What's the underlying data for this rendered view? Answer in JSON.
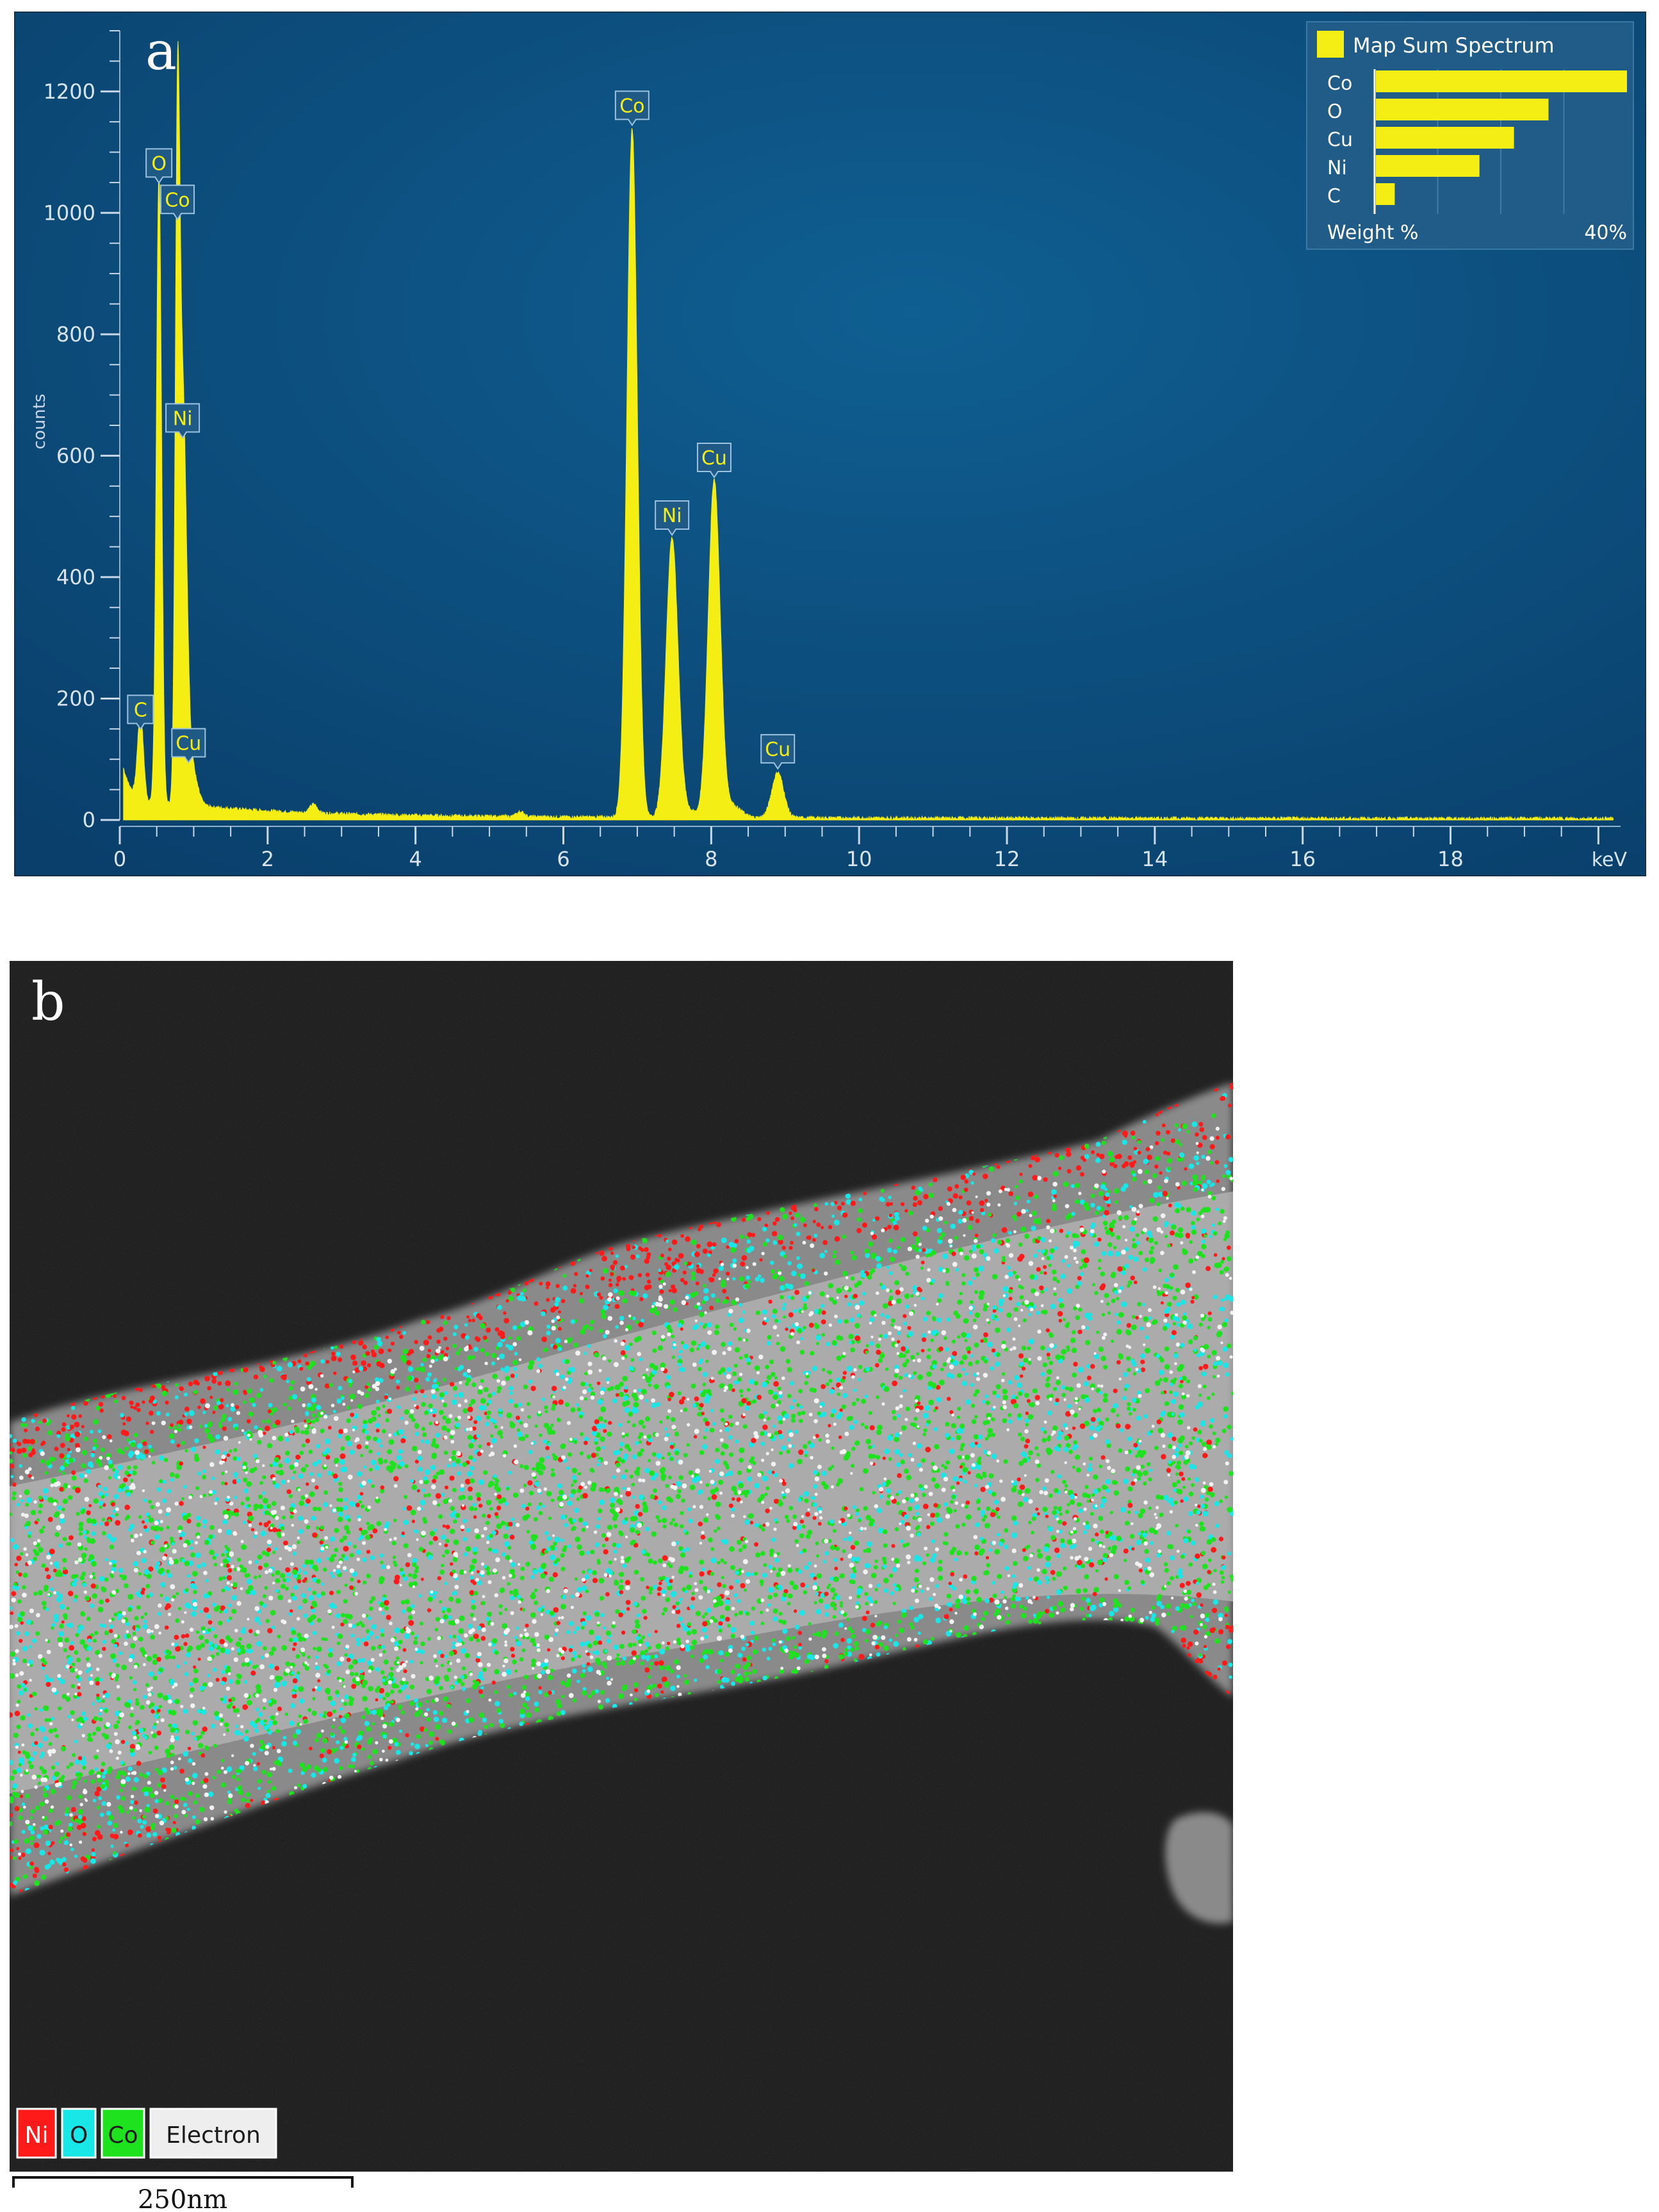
{
  "panels": [
    {
      "label": "a"
    },
    {
      "label": "b"
    }
  ],
  "chart_data": {
    "type": "area",
    "ylabel": "counts",
    "xunit": "keV",
    "xlim": [
      0,
      20.3
    ],
    "ylim": [
      0,
      1300
    ],
    "x_ticks": [
      "0",
      "2",
      "4",
      "6",
      "8",
      "10",
      "12",
      "14",
      "16",
      "18"
    ],
    "y_ticks": [
      "0",
      "200",
      "400",
      "600",
      "800",
      "1000",
      "1200"
    ],
    "series_color": "#f4ee14",
    "background_color": "#0b4a78",
    "peaks": [
      {
        "label": "C",
        "x": 0.28,
        "y": 140,
        "width": 0.04
      },
      {
        "label": "O",
        "x": 0.53,
        "y": 1040,
        "width": 0.035
      },
      {
        "label": "Co",
        "x": 0.78,
        "y": 980,
        "width": 0.03
      },
      {
        "label": "Ni",
        "x": 0.85,
        "y": 620,
        "width": 0.05
      },
      {
        "label": "Cu",
        "x": 0.93,
        "y": 85,
        "width": 0.09
      },
      {
        "label": "Co",
        "x": 6.93,
        "y": 1135,
        "width": 0.07
      },
      {
        "label": "Ni",
        "x": 7.47,
        "y": 460,
        "width": 0.08
      },
      {
        "label": "Cu",
        "x": 8.04,
        "y": 555,
        "width": 0.08
      },
      {
        "label": "Cu",
        "x": 8.9,
        "y": 75,
        "width": 0.08
      }
    ],
    "legend": {
      "title": "Map Sum Spectrum",
      "position": "top-right",
      "items": [
        {
          "element": "Co",
          "weight_percent": 40
        },
        {
          "element": "O",
          "weight_percent": 27.5
        },
        {
          "element": "Cu",
          "weight_percent": 22
        },
        {
          "element": "Ni",
          "weight_percent": 16.5
        },
        {
          "element": "C",
          "weight_percent": 3
        }
      ],
      "axis_label": "Weight %",
      "axis_max_label": "40%",
      "axis_max": 40
    }
  },
  "map": {
    "legend_items": [
      {
        "label": "Ni",
        "color": "#ff1a1a"
      },
      {
        "label": "O",
        "color": "#19e6e6"
      },
      {
        "label": "Co",
        "color": "#1ee21e"
      },
      {
        "label": "Electron",
        "color": "#eeeeee"
      }
    ],
    "scale_bar": "250nm"
  }
}
